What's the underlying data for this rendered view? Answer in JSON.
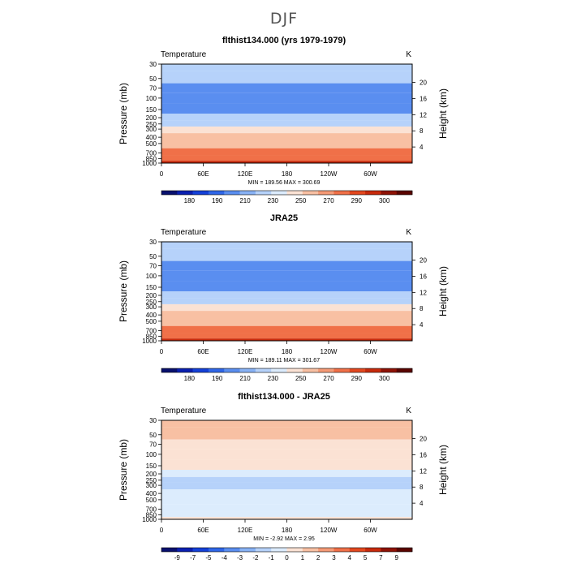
{
  "page_title": "DJF",
  "chart_data": [
    {
      "type": "heatmap",
      "title": "flthist134.000 (yrs 1979-1979)",
      "variable_label": "Temperature",
      "units_label": "K",
      "ylabel": "Pressure (mb)",
      "ylabel_right": "Height (km)",
      "x_ticks": [
        "0",
        "60E",
        "120E",
        "180",
        "120W",
        "60W"
      ],
      "y_ticks": [
        "30",
        "50",
        "70",
        "100",
        "150",
        "200",
        "250",
        "300",
        "400",
        "500",
        "700",
        "850",
        "1000"
      ],
      "y_right_ticks": [
        "20",
        "16",
        "12",
        "8",
        "4"
      ],
      "stats": "MIN = 189.56   MAX = 300.69",
      "levels": [
        180,
        190,
        210,
        230,
        250,
        270,
        290,
        300
      ],
      "colorbar_labels": [
        "180",
        "190",
        "210",
        "230",
        "250",
        "270",
        "290",
        "300"
      ],
      "bands_mb": [
        {
          "p": 30,
          "v": 220
        },
        {
          "p": 50,
          "v": 210
        },
        {
          "p": 70,
          "v": 205
        },
        {
          "p": 100,
          "v": 195
        },
        {
          "p": 150,
          "v": 205
        },
        {
          "p": 200,
          "v": 215
        },
        {
          "p": 250,
          "v": 225
        },
        {
          "p": 300,
          "v": 235
        },
        {
          "p": 400,
          "v": 250
        },
        {
          "p": 500,
          "v": 260
        },
        {
          "p": 700,
          "v": 275
        },
        {
          "p": 850,
          "v": 285
        },
        {
          "p": 1000,
          "v": 295
        }
      ]
    },
    {
      "type": "heatmap",
      "title": "JRA25",
      "variable_label": "Temperature",
      "units_label": "K",
      "ylabel": "Pressure (mb)",
      "ylabel_right": "Height (km)",
      "x_ticks": [
        "0",
        "60E",
        "120E",
        "180",
        "120W",
        "60W"
      ],
      "y_ticks": [
        "30",
        "50",
        "70",
        "100",
        "150",
        "200",
        "250",
        "300",
        "400",
        "500",
        "700",
        "850",
        "1000"
      ],
      "y_right_ticks": [
        "20",
        "16",
        "12",
        "8",
        "4"
      ],
      "stats": "MIN = 189.11   MAX = 301.67",
      "levels": [
        180,
        190,
        210,
        230,
        250,
        270,
        290,
        300
      ],
      "colorbar_labels": [
        "180",
        "190",
        "210",
        "230",
        "250",
        "270",
        "290",
        "300"
      ],
      "bands_mb": [
        {
          "p": 30,
          "v": 220
        },
        {
          "p": 50,
          "v": 210
        },
        {
          "p": 70,
          "v": 205
        },
        {
          "p": 100,
          "v": 195
        },
        {
          "p": 150,
          "v": 205
        },
        {
          "p": 200,
          "v": 215
        },
        {
          "p": 250,
          "v": 225
        },
        {
          "p": 300,
          "v": 235
        },
        {
          "p": 400,
          "v": 250
        },
        {
          "p": 500,
          "v": 260
        },
        {
          "p": 700,
          "v": 275
        },
        {
          "p": 850,
          "v": 285
        },
        {
          "p": 1000,
          "v": 295
        }
      ]
    },
    {
      "type": "heatmap",
      "title": "flthist134.000 - JRA25",
      "variable_label": "Temperature",
      "units_label": "K",
      "ylabel": "Pressure (mb)",
      "ylabel_right": "Height (km)",
      "x_ticks": [
        "0",
        "60E",
        "120E",
        "180",
        "120W",
        "60W"
      ],
      "y_ticks": [
        "30",
        "50",
        "70",
        "100",
        "150",
        "200",
        "250",
        "300",
        "400",
        "500",
        "700",
        "850",
        "1000"
      ],
      "y_right_ticks": [
        "20",
        "16",
        "12",
        "8",
        "4"
      ],
      "stats": "MIN = -2.92   MAX = 2.95",
      "levels": [
        -9,
        -7,
        -5,
        -4,
        -3,
        -2,
        -1,
        0,
        1,
        2,
        3,
        4,
        5,
        7,
        9
      ],
      "colorbar_labels": [
        "-9",
        "-7",
        "-5",
        "-4",
        "-3",
        "-2",
        "-1",
        "0",
        "1",
        "2",
        "3",
        "4",
        "5",
        "7",
        "9"
      ],
      "bands_mb": [
        {
          "p": 30,
          "v": 1.5
        },
        {
          "p": 50,
          "v": 1.2
        },
        {
          "p": 70,
          "v": 0.8
        },
        {
          "p": 100,
          "v": 0.5
        },
        {
          "p": 150,
          "v": 0.3
        },
        {
          "p": 200,
          "v": -0.5
        },
        {
          "p": 250,
          "v": -1.2
        },
        {
          "p": 300,
          "v": -1.5
        },
        {
          "p": 400,
          "v": -0.8
        },
        {
          "p": 500,
          "v": -0.6
        },
        {
          "p": 700,
          "v": -0.3
        },
        {
          "p": 850,
          "v": -0.4
        },
        {
          "p": 1000,
          "v": 0.2
        }
      ]
    }
  ],
  "palettes": {
    "temperature": [
      "#08106e",
      "#0a1fb0",
      "#1440d8",
      "#2f66e8",
      "#5a8ef0",
      "#88b2f5",
      "#b6d2fa",
      "#dcecfd",
      "#fbe2d4",
      "#f8c0a3",
      "#f59a76",
      "#f07048",
      "#e3481f",
      "#c72a0c",
      "#8e1205",
      "#5a0400"
    ],
    "difference": [
      "#08106e",
      "#0a1fb0",
      "#1440d8",
      "#2f66e8",
      "#5a8ef0",
      "#88b2f5",
      "#b6d2fa",
      "#dcecfd",
      "#fbe2d4",
      "#f8c0a3",
      "#f59a76",
      "#f07048",
      "#e3481f",
      "#c72a0c",
      "#8e1205",
      "#5a0400"
    ]
  }
}
